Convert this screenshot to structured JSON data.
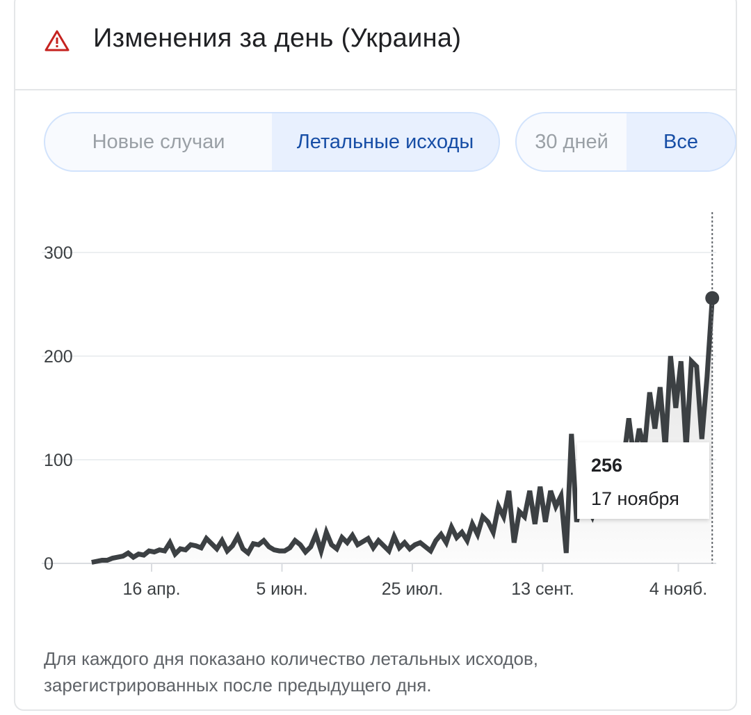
{
  "header": {
    "title": "Изменения за день (Украина)",
    "icon": "warning-triangle-icon",
    "icon_color": "#c5221f"
  },
  "metric_toggle": {
    "options": [
      "Новые случаи",
      "Летальные исходы"
    ],
    "selected": "Летальные исходы"
  },
  "range_toggle": {
    "options": [
      "30 дней",
      "Все"
    ],
    "selected": "Все"
  },
  "tooltip": {
    "value": "256",
    "date": "17 ноября"
  },
  "note": "Для каждого дня показано количество летальных исходов, зарегистрированных после предыдущего дня.",
  "chart_data": {
    "type": "area",
    "ylim": [
      0,
      340
    ],
    "y_ticks": [
      "0",
      "100",
      "200",
      "300"
    ],
    "x_ticks": [
      {
        "label": "16 апр.",
        "date": "04-16"
      },
      {
        "label": "5 июн.",
        "date": "06-05"
      },
      {
        "label": "25 июл.",
        "date": "07-25"
      },
      {
        "label": "13 сент.",
        "date": "09-13"
      },
      {
        "label": "4 нояб.",
        "date": "11-04"
      }
    ],
    "grid": true,
    "line_color": "#3c4043",
    "fill_color": "#e0e0e0",
    "highlight": {
      "date": "11-17",
      "value": 256
    },
    "dates": [
      "03-24",
      "03-26",
      "03-28",
      "03-30",
      "04-01",
      "04-03",
      "04-05",
      "04-07",
      "04-09",
      "04-11",
      "04-13",
      "04-15",
      "04-17",
      "04-19",
      "04-21",
      "04-23",
      "04-25",
      "04-27",
      "04-29",
      "05-01",
      "05-03",
      "05-05",
      "05-07",
      "05-09",
      "05-11",
      "05-13",
      "05-15",
      "05-17",
      "05-19",
      "05-21",
      "05-23",
      "05-25",
      "05-27",
      "05-29",
      "05-31",
      "06-02",
      "06-04",
      "06-06",
      "06-08",
      "06-10",
      "06-12",
      "06-14",
      "06-16",
      "06-18",
      "06-20",
      "06-22",
      "06-24",
      "06-26",
      "06-28",
      "06-30",
      "07-02",
      "07-04",
      "07-06",
      "07-08",
      "07-10",
      "07-12",
      "07-14",
      "07-16",
      "07-18",
      "07-20",
      "07-22",
      "07-24",
      "07-26",
      "07-28",
      "07-30",
      "08-01",
      "08-03",
      "08-05",
      "08-07",
      "08-09",
      "08-11",
      "08-13",
      "08-15",
      "08-17",
      "08-19",
      "08-21",
      "08-23",
      "08-25",
      "08-27",
      "08-29",
      "08-31",
      "09-02",
      "09-04",
      "09-06",
      "09-08",
      "09-10",
      "09-12",
      "09-14",
      "09-16",
      "09-18",
      "09-20",
      "09-22",
      "09-24",
      "09-26",
      "09-28",
      "09-30",
      "10-02",
      "10-04",
      "10-06",
      "10-08",
      "10-10",
      "10-12",
      "10-14",
      "10-16",
      "10-18",
      "10-20",
      "10-22",
      "10-24",
      "10-26",
      "10-28",
      "10-30",
      "11-01",
      "11-03",
      "11-05",
      "11-07",
      "11-09",
      "11-11",
      "11-13",
      "11-15",
      "11-17"
    ],
    "values": [
      1,
      2,
      3,
      3,
      5,
      6,
      7,
      10,
      6,
      9,
      8,
      12,
      11,
      13,
      12,
      20,
      9,
      14,
      13,
      18,
      17,
      15,
      24,
      19,
      14,
      22,
      12,
      17,
      26,
      14,
      10,
      19,
      18,
      22,
      16,
      13,
      12,
      12,
      15,
      22,
      18,
      11,
      16,
      28,
      12,
      30,
      18,
      14,
      25,
      20,
      27,
      18,
      21,
      24,
      15,
      22,
      17,
      12,
      26,
      15,
      20,
      14,
      18,
      20,
      16,
      12,
      22,
      28,
      20,
      35,
      25,
      30,
      22,
      38,
      28,
      45,
      40,
      30,
      55,
      45,
      70,
      20,
      50,
      45,
      70,
      38,
      74,
      40,
      70,
      55,
      65,
      10,
      125,
      40,
      70,
      55,
      45,
      60,
      50,
      60,
      75,
      90,
      100,
      140,
      100,
      130,
      110,
      165,
      130,
      170,
      110,
      200,
      150,
      195,
      110,
      195,
      190,
      120,
      180,
      256
    ]
  }
}
